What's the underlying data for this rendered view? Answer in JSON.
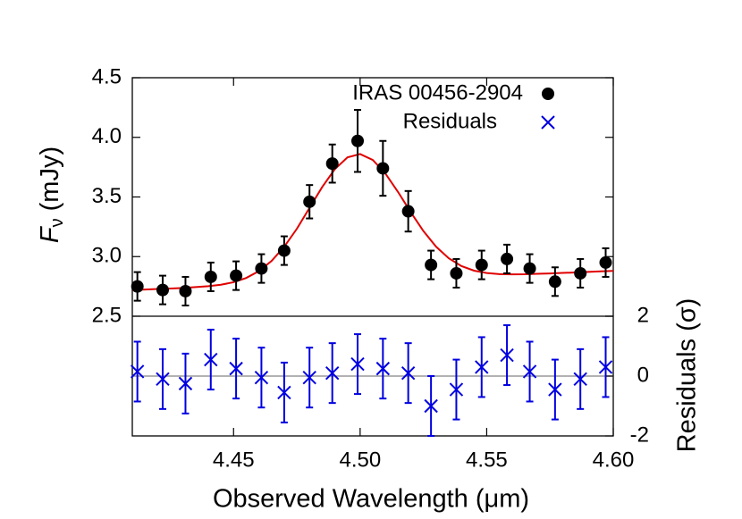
{
  "chart_data": [
    {
      "type": "scatter",
      "ylabel": {
        "symbol": "F",
        "subscript": "ν",
        "unit": "(mJy)"
      },
      "x": [
        4.412,
        4.422,
        4.431,
        4.441,
        4.451,
        4.461,
        4.47,
        4.48,
        4.489,
        4.499,
        4.509,
        4.519,
        4.528,
        4.538,
        4.548,
        4.558,
        4.567,
        4.577,
        4.587,
        4.597
      ],
      "series": [
        {
          "name": "IRAS 00456-2904",
          "color": "#000000",
          "values": [
            2.75,
            2.72,
            2.71,
            2.83,
            2.84,
            2.9,
            3.05,
            3.46,
            3.78,
            3.97,
            3.74,
            3.38,
            2.93,
            2.86,
            2.93,
            2.98,
            2.9,
            2.79,
            2.86,
            2.95
          ],
          "errors": [
            0.12,
            0.12,
            0.12,
            0.12,
            0.12,
            0.12,
            0.12,
            0.14,
            0.16,
            0.26,
            0.23,
            0.17,
            0.12,
            0.12,
            0.12,
            0.12,
            0.12,
            0.12,
            0.12,
            0.12
          ]
        }
      ],
      "fit": {
        "color": "#e00000",
        "x": [
          4.41,
          4.415,
          4.42,
          4.425,
          4.43,
          4.435,
          4.44,
          4.445,
          4.45,
          4.455,
          4.46,
          4.465,
          4.47,
          4.475,
          4.48,
          4.485,
          4.49,
          4.495,
          4.5,
          4.505,
          4.51,
          4.515,
          4.52,
          4.525,
          4.53,
          4.535,
          4.54,
          4.545,
          4.55,
          4.555,
          4.56,
          4.565,
          4.57,
          4.575,
          4.58,
          4.585,
          4.59,
          4.595,
          4.6
        ],
        "values": [
          2.72,
          2.724,
          2.728,
          2.732,
          2.737,
          2.744,
          2.752,
          2.764,
          2.785,
          2.821,
          2.878,
          2.963,
          3.082,
          3.233,
          3.408,
          3.583,
          3.733,
          3.832,
          3.86,
          3.81,
          3.696,
          3.541,
          3.372,
          3.214,
          3.083,
          2.986,
          2.921,
          2.882,
          2.862,
          2.853,
          2.851,
          2.852,
          2.856,
          2.859,
          2.863,
          2.867,
          2.872,
          2.876,
          2.88
        ]
      },
      "xlim": [
        4.41,
        4.6
      ],
      "ylim": [
        2.5,
        4.5
      ],
      "yticks": [
        2.5,
        {
          "value": 3,
          "label": "3.0"
        },
        3.5,
        {
          "value": 4,
          "label": "4.0"
        },
        4.5
      ],
      "legend": "upper right"
    },
    {
      "type": "scatter",
      "xlabel": "Observed Wavelength (μm)",
      "y2label": "Residuals (σ)",
      "x": [
        4.412,
        4.422,
        4.431,
        4.441,
        4.451,
        4.461,
        4.47,
        4.48,
        4.489,
        4.499,
        4.509,
        4.519,
        4.528,
        4.538,
        4.548,
        4.558,
        4.567,
        4.577,
        4.587,
        4.597
      ],
      "series": [
        {
          "name": "Residuals",
          "color": "#0000e0",
          "axis": "y2",
          "values": [
            0.15,
            -0.1,
            -0.25,
            0.55,
            0.25,
            -0.05,
            -0.55,
            -0.05,
            0.1,
            0.4,
            0.25,
            0.1,
            -1.0,
            -0.45,
            0.3,
            0.7,
            0.15,
            -0.45,
            -0.1,
            0.3
          ],
          "errors": [
            1,
            1,
            1,
            1,
            1,
            1,
            1,
            1,
            1,
            1,
            1,
            1,
            1,
            1,
            1,
            1,
            1,
            1,
            1,
            1
          ]
        }
      ],
      "reference_line": 0,
      "xlim": [
        4.41,
        4.6
      ],
      "xticks": [
        4.45,
        {
          "value": 4.5,
          "label": "4.50"
        },
        4.55,
        {
          "value": 4.6,
          "label": "4.60"
        }
      ],
      "y2lim": [
        -2,
        2
      ],
      "y2ticks": [
        -2,
        0,
        2
      ]
    }
  ]
}
